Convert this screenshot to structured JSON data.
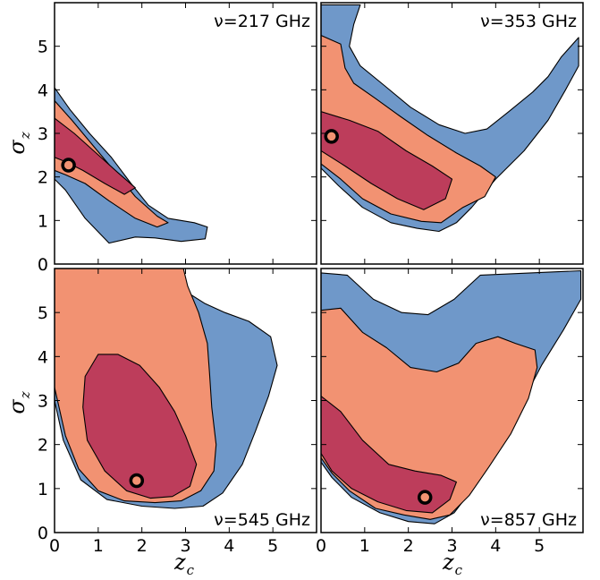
{
  "chart_data": {
    "type": "contour",
    "grid": false,
    "colors": {
      "outer": "#6f98c9",
      "middle": "#f29272",
      "inner": "#bd3d5b",
      "best_fit": "#f29272",
      "outline": "#000000"
    },
    "xlabel": {
      "main": "z",
      "sub": "c"
    },
    "ylabel": {
      "main": "σ",
      "sub": "z"
    },
    "xlim": [
      0,
      6
    ],
    "ylim": [
      0,
      6
    ],
    "x_ticks": [
      "0",
      "1",
      "2",
      "3",
      "4",
      "5"
    ],
    "y_ticks": [
      "0",
      "1",
      "2",
      "3",
      "4",
      "5"
    ],
    "panels": [
      {
        "label": "ν=217 GHz",
        "best_fit": [
          0.32,
          2.27
        ],
        "contours": {
          "outer": [
            [
              0,
              4.05
            ],
            [
              0.35,
              3.55
            ],
            [
              0.8,
              3.0
            ],
            [
              1.3,
              2.45
            ],
            [
              1.75,
              1.85
            ],
            [
              2.15,
              1.35
            ],
            [
              2.6,
              1.05
            ],
            [
              3.2,
              0.95
            ],
            [
              3.5,
              0.85
            ],
            [
              3.45,
              0.58
            ],
            [
              2.9,
              0.52
            ],
            [
              2.3,
              0.6
            ],
            [
              1.85,
              0.62
            ],
            [
              1.25,
              0.48
            ],
            [
              0.7,
              1.05
            ],
            [
              0.25,
              1.7
            ],
            [
              0,
              1.95
            ]
          ],
          "middle": [
            [
              0,
              3.75
            ],
            [
              0.4,
              3.3
            ],
            [
              0.9,
              2.7
            ],
            [
              1.4,
              2.1
            ],
            [
              1.85,
              1.55
            ],
            [
              2.35,
              1.1
            ],
            [
              2.6,
              0.95
            ],
            [
              2.35,
              0.85
            ],
            [
              1.85,
              1.05
            ],
            [
              1.25,
              1.45
            ],
            [
              0.7,
              1.85
            ],
            [
              0.25,
              2.05
            ],
            [
              0,
              2.15
            ]
          ],
          "inner": [
            [
              0,
              3.35
            ],
            [
              0.45,
              3.0
            ],
            [
              0.95,
              2.55
            ],
            [
              1.45,
              2.1
            ],
            [
              1.85,
              1.75
            ],
            [
              1.6,
              1.6
            ],
            [
              1.15,
              1.85
            ],
            [
              0.65,
              2.15
            ],
            [
              0.25,
              2.35
            ],
            [
              0,
              2.45
            ]
          ]
        }
      },
      {
        "label": "ν=353 GHz",
        "best_fit": [
          0.24,
          2.93
        ],
        "contours": {
          "outer": [
            [
              0,
              5.95
            ],
            [
              0.9,
              5.95
            ],
            [
              0.75,
              5.5
            ],
            [
              0.65,
              5.0
            ],
            [
              0.9,
              4.55
            ],
            [
              1.45,
              4.1
            ],
            [
              2.05,
              3.6
            ],
            [
              2.7,
              3.2
            ],
            [
              3.3,
              3.0
            ],
            [
              3.8,
              3.1
            ],
            [
              4.3,
              3.5
            ],
            [
              4.85,
              3.95
            ],
            [
              5.2,
              4.3
            ],
            [
              5.5,
              4.75
            ],
            [
              5.9,
              5.2
            ],
            [
              5.9,
              4.55
            ],
            [
              5.6,
              4.0
            ],
            [
              5.2,
              3.3
            ],
            [
              4.65,
              2.6
            ],
            [
              4.0,
              1.95
            ],
            [
              3.45,
              1.3
            ],
            [
              3.1,
              0.95
            ],
            [
              2.7,
              0.75
            ],
            [
              2.2,
              0.82
            ],
            [
              1.6,
              0.95
            ],
            [
              0.95,
              1.3
            ],
            [
              0.4,
              1.8
            ],
            [
              0,
              2.2
            ]
          ],
          "middle": [
            [
              0,
              5.25
            ],
            [
              0.45,
              5.05
            ],
            [
              0.55,
              4.5
            ],
            [
              0.75,
              4.15
            ],
            [
              1.25,
              3.8
            ],
            [
              1.8,
              3.4
            ],
            [
              2.45,
              2.95
            ],
            [
              3.1,
              2.55
            ],
            [
              3.65,
              2.25
            ],
            [
              4.0,
              2.0
            ],
            [
              3.75,
              1.55
            ],
            [
              3.25,
              1.3
            ],
            [
              2.75,
              0.95
            ],
            [
              2.3,
              0.98
            ],
            [
              1.6,
              1.15
            ],
            [
              0.95,
              1.5
            ],
            [
              0.45,
              1.95
            ],
            [
              0,
              2.3
            ]
          ],
          "inner": [
            [
              0,
              3.5
            ],
            [
              0.65,
              3.3
            ],
            [
              1.3,
              3.05
            ],
            [
              1.95,
              2.6
            ],
            [
              2.55,
              2.25
            ],
            [
              3.0,
              1.95
            ],
            [
              2.85,
              1.5
            ],
            [
              2.35,
              1.25
            ],
            [
              1.75,
              1.5
            ],
            [
              1.15,
              1.85
            ],
            [
              0.55,
              2.25
            ],
            [
              0,
              2.6
            ]
          ]
        }
      },
      {
        "label": "ν=545 GHz",
        "best_fit": [
          1.88,
          1.18
        ],
        "contours": {
          "outer": [
            [
              0,
              6.0
            ],
            [
              2.95,
              6.0
            ],
            [
              2.95,
              5.75
            ],
            [
              3.05,
              5.45
            ],
            [
              3.45,
              5.2
            ],
            [
              3.9,
              5.0
            ],
            [
              4.45,
              4.8
            ],
            [
              4.95,
              4.45
            ],
            [
              5.1,
              3.8
            ],
            [
              4.9,
              3.1
            ],
            [
              4.6,
              2.3
            ],
            [
              4.3,
              1.55
            ],
            [
              3.85,
              0.9
            ],
            [
              3.4,
              0.6
            ],
            [
              2.75,
              0.55
            ],
            [
              2.0,
              0.6
            ],
            [
              1.2,
              0.75
            ],
            [
              0.6,
              1.2
            ],
            [
              0.2,
              2.1
            ],
            [
              0,
              3.0
            ]
          ],
          "middle": [
            [
              0,
              6.0
            ],
            [
              2.95,
              6.0
            ],
            [
              3.05,
              5.6
            ],
            [
              3.3,
              5.0
            ],
            [
              3.5,
              4.3
            ],
            [
              3.55,
              3.6
            ],
            [
              3.6,
              2.85
            ],
            [
              3.7,
              2.0
            ],
            [
              3.65,
              1.4
            ],
            [
              3.35,
              0.95
            ],
            [
              2.9,
              0.72
            ],
            [
              2.3,
              0.68
            ],
            [
              1.6,
              0.72
            ],
            [
              1.0,
              0.95
            ],
            [
              0.55,
              1.45
            ],
            [
              0.25,
              2.2
            ],
            [
              0,
              3.3
            ]
          ],
          "inner": [
            [
              1.0,
              4.05
            ],
            [
              1.45,
              4.05
            ],
            [
              1.95,
              3.8
            ],
            [
              2.4,
              3.3
            ],
            [
              2.75,
              2.75
            ],
            [
              3.0,
              2.2
            ],
            [
              3.25,
              1.55
            ],
            [
              3.1,
              1.05
            ],
            [
              2.7,
              0.82
            ],
            [
              2.2,
              0.78
            ],
            [
              1.65,
              0.95
            ],
            [
              1.15,
              1.4
            ],
            [
              0.75,
              2.1
            ],
            [
              0.65,
              2.85
            ],
            [
              0.7,
              3.55
            ]
          ]
        }
      },
      {
        "label": "ν=857 GHz",
        "best_fit": [
          2.38,
          0.8
        ],
        "contours": {
          "outer": [
            [
              0,
              5.9
            ],
            [
              0.6,
              5.85
            ],
            [
              1.2,
              5.3
            ],
            [
              1.85,
              5.0
            ],
            [
              2.45,
              4.95
            ],
            [
              3.05,
              5.3
            ],
            [
              3.65,
              5.85
            ],
            [
              5.95,
              5.95
            ],
            [
              5.95,
              5.3
            ],
            [
              5.55,
              4.6
            ],
            [
              5.05,
              3.8
            ],
            [
              4.55,
              2.85
            ],
            [
              4.05,
              1.9
            ],
            [
              3.55,
              1.1
            ],
            [
              3.05,
              0.45
            ],
            [
              2.6,
              0.2
            ],
            [
              2.0,
              0.25
            ],
            [
              1.35,
              0.45
            ],
            [
              0.7,
              0.8
            ],
            [
              0.25,
              1.25
            ],
            [
              0,
              1.6
            ]
          ],
          "middle": [
            [
              0,
              5.05
            ],
            [
              0.45,
              5.1
            ],
            [
              0.95,
              4.55
            ],
            [
              1.5,
              4.2
            ],
            [
              2.05,
              3.75
            ],
            [
              2.65,
              3.65
            ],
            [
              3.15,
              3.85
            ],
            [
              3.55,
              4.3
            ],
            [
              4.05,
              4.45
            ],
            [
              4.45,
              4.3
            ],
            [
              4.9,
              4.15
            ],
            [
              4.95,
              3.75
            ],
            [
              4.75,
              3.05
            ],
            [
              4.35,
              2.25
            ],
            [
              3.85,
              1.5
            ],
            [
              3.4,
              0.85
            ],
            [
              2.95,
              0.4
            ],
            [
              2.5,
              0.3
            ],
            [
              1.9,
              0.4
            ],
            [
              1.25,
              0.55
            ],
            [
              0.65,
              0.95
            ],
            [
              0.25,
              1.35
            ],
            [
              0,
              1.7
            ]
          ],
          "inner": [
            [
              0,
              3.1
            ],
            [
              0.45,
              2.75
            ],
            [
              0.95,
              2.1
            ],
            [
              1.55,
              1.55
            ],
            [
              2.15,
              1.4
            ],
            [
              2.75,
              1.3
            ],
            [
              3.1,
              1.15
            ],
            [
              2.95,
              0.75
            ],
            [
              2.55,
              0.45
            ],
            [
              1.95,
              0.5
            ],
            [
              1.3,
              0.7
            ],
            [
              0.7,
              1.0
            ],
            [
              0.25,
              1.4
            ],
            [
              0,
              1.8
            ]
          ]
        }
      }
    ]
  }
}
